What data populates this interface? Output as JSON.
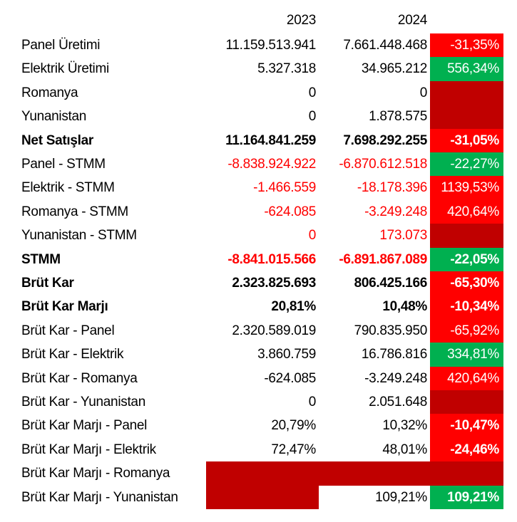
{
  "header": {
    "col1": "2023",
    "col2": "2024",
    "col3": ""
  },
  "colors": {
    "red": "#ff0000",
    "green": "#00b050",
    "dark_red": "#c00000",
    "negative_text": "#ff0000"
  },
  "rows": [
    {
      "label": "Panel Üretimi",
      "y2023": "11.159.513.941",
      "y2024": "7.661.448.468",
      "change": "-31,35%",
      "change_bg": "red",
      "bold": false,
      "neg": false
    },
    {
      "label": "Elektrik Üretimi",
      "y2023": "5.327.318",
      "y2024": "34.965.212",
      "change": "556,34%",
      "change_bg": "green",
      "bold": false,
      "neg": false
    },
    {
      "label": "Romanya",
      "y2023": "0",
      "y2024": "0",
      "change": "",
      "change_bg": "dark",
      "bold": false,
      "neg": false
    },
    {
      "label": "Yunanistan",
      "y2023": "0",
      "y2024": "1.878.575",
      "change": "",
      "change_bg": "dark",
      "bold": false,
      "neg": false
    },
    {
      "label": "Net Satışlar",
      "y2023": "11.164.841.259",
      "y2024": "7.698.292.255",
      "change": "-31,05%",
      "change_bg": "red",
      "bold": true,
      "neg": false
    },
    {
      "label": "Panel - STMM",
      "y2023": "-8.838.924.922",
      "y2024": "-6.870.612.518",
      "change": "-22,27%",
      "change_bg": "green",
      "bold": false,
      "neg": true
    },
    {
      "label": "Elektrik - STMM",
      "y2023": "-1.466.559",
      "y2024": "-18.178.396",
      "change": "1139,53%",
      "change_bg": "red",
      "bold": false,
      "neg": true
    },
    {
      "label": "Romanya - STMM",
      "y2023": "-624.085",
      "y2024": "-3.249.248",
      "change": "420,64%",
      "change_bg": "red",
      "bold": false,
      "neg": true
    },
    {
      "label": "Yunanistan - STMM",
      "y2023": "0",
      "y2024": "173.073",
      "change": "",
      "change_bg": "dark",
      "bold": false,
      "neg": true
    },
    {
      "label": "STMM",
      "y2023": "-8.841.015.566",
      "y2024": "-6.891.867.089",
      "change": "-22,05%",
      "change_bg": "green",
      "bold": true,
      "neg": true
    },
    {
      "label": "Brüt Kar",
      "y2023": "2.323.825.693",
      "y2024": "806.425.166",
      "change": "-65,30%",
      "change_bg": "red",
      "bold": true,
      "neg": false
    },
    {
      "label": "Brüt Kar Marjı",
      "y2023": "20,81%",
      "y2024": "10,48%",
      "change": "-10,34%",
      "change_bg": "red",
      "bold": true,
      "neg": false
    },
    {
      "label": "Brüt Kar - Panel",
      "y2023": "2.320.589.019",
      "y2024": "790.835.950",
      "change": "-65,92%",
      "change_bg": "red",
      "bold": false,
      "neg": false
    },
    {
      "label": "Brüt Kar - Elektrik",
      "y2023": "3.860.759",
      "y2024": "16.786.816",
      "change": "334,81%",
      "change_bg": "green",
      "bold": false,
      "neg": false
    },
    {
      "label": "Brüt Kar - Romanya",
      "y2023": "-624.085",
      "y2024": "-3.249.248",
      "change": "420,64%",
      "change_bg": "red",
      "bold": false,
      "neg": false
    },
    {
      "label": "Brüt Kar - Yunanistan",
      "y2023": "0",
      "y2024": "2.051.648",
      "change": "",
      "change_bg": "dark",
      "bold": false,
      "neg": false
    },
    {
      "label": "Brüt Kar Marjı - Panel",
      "y2023": "20,79%",
      "y2024": "10,32%",
      "change": "-10,47%",
      "change_bg": "red",
      "bold": false,
      "neg": false,
      "change_bold": true
    },
    {
      "label": "Brüt Kar Marjı - Elektrik",
      "y2023": "72,47%",
      "y2024": "48,01%",
      "change": "-24,46%",
      "change_bg": "red",
      "bold": false,
      "neg": false,
      "change_bold": true
    },
    {
      "label": "Brüt Kar Marjı - Romanya",
      "y2023": "",
      "y2024": "",
      "change": "",
      "change_bg": "dark",
      "bold": false,
      "neg": false
    },
    {
      "label": "Brüt Kar Marjı - Yunanistan",
      "y2023": "",
      "y2024": "109,21%",
      "change": "109,21%",
      "change_bg": "green",
      "bold": false,
      "neg": false,
      "change_bold": true
    }
  ]
}
